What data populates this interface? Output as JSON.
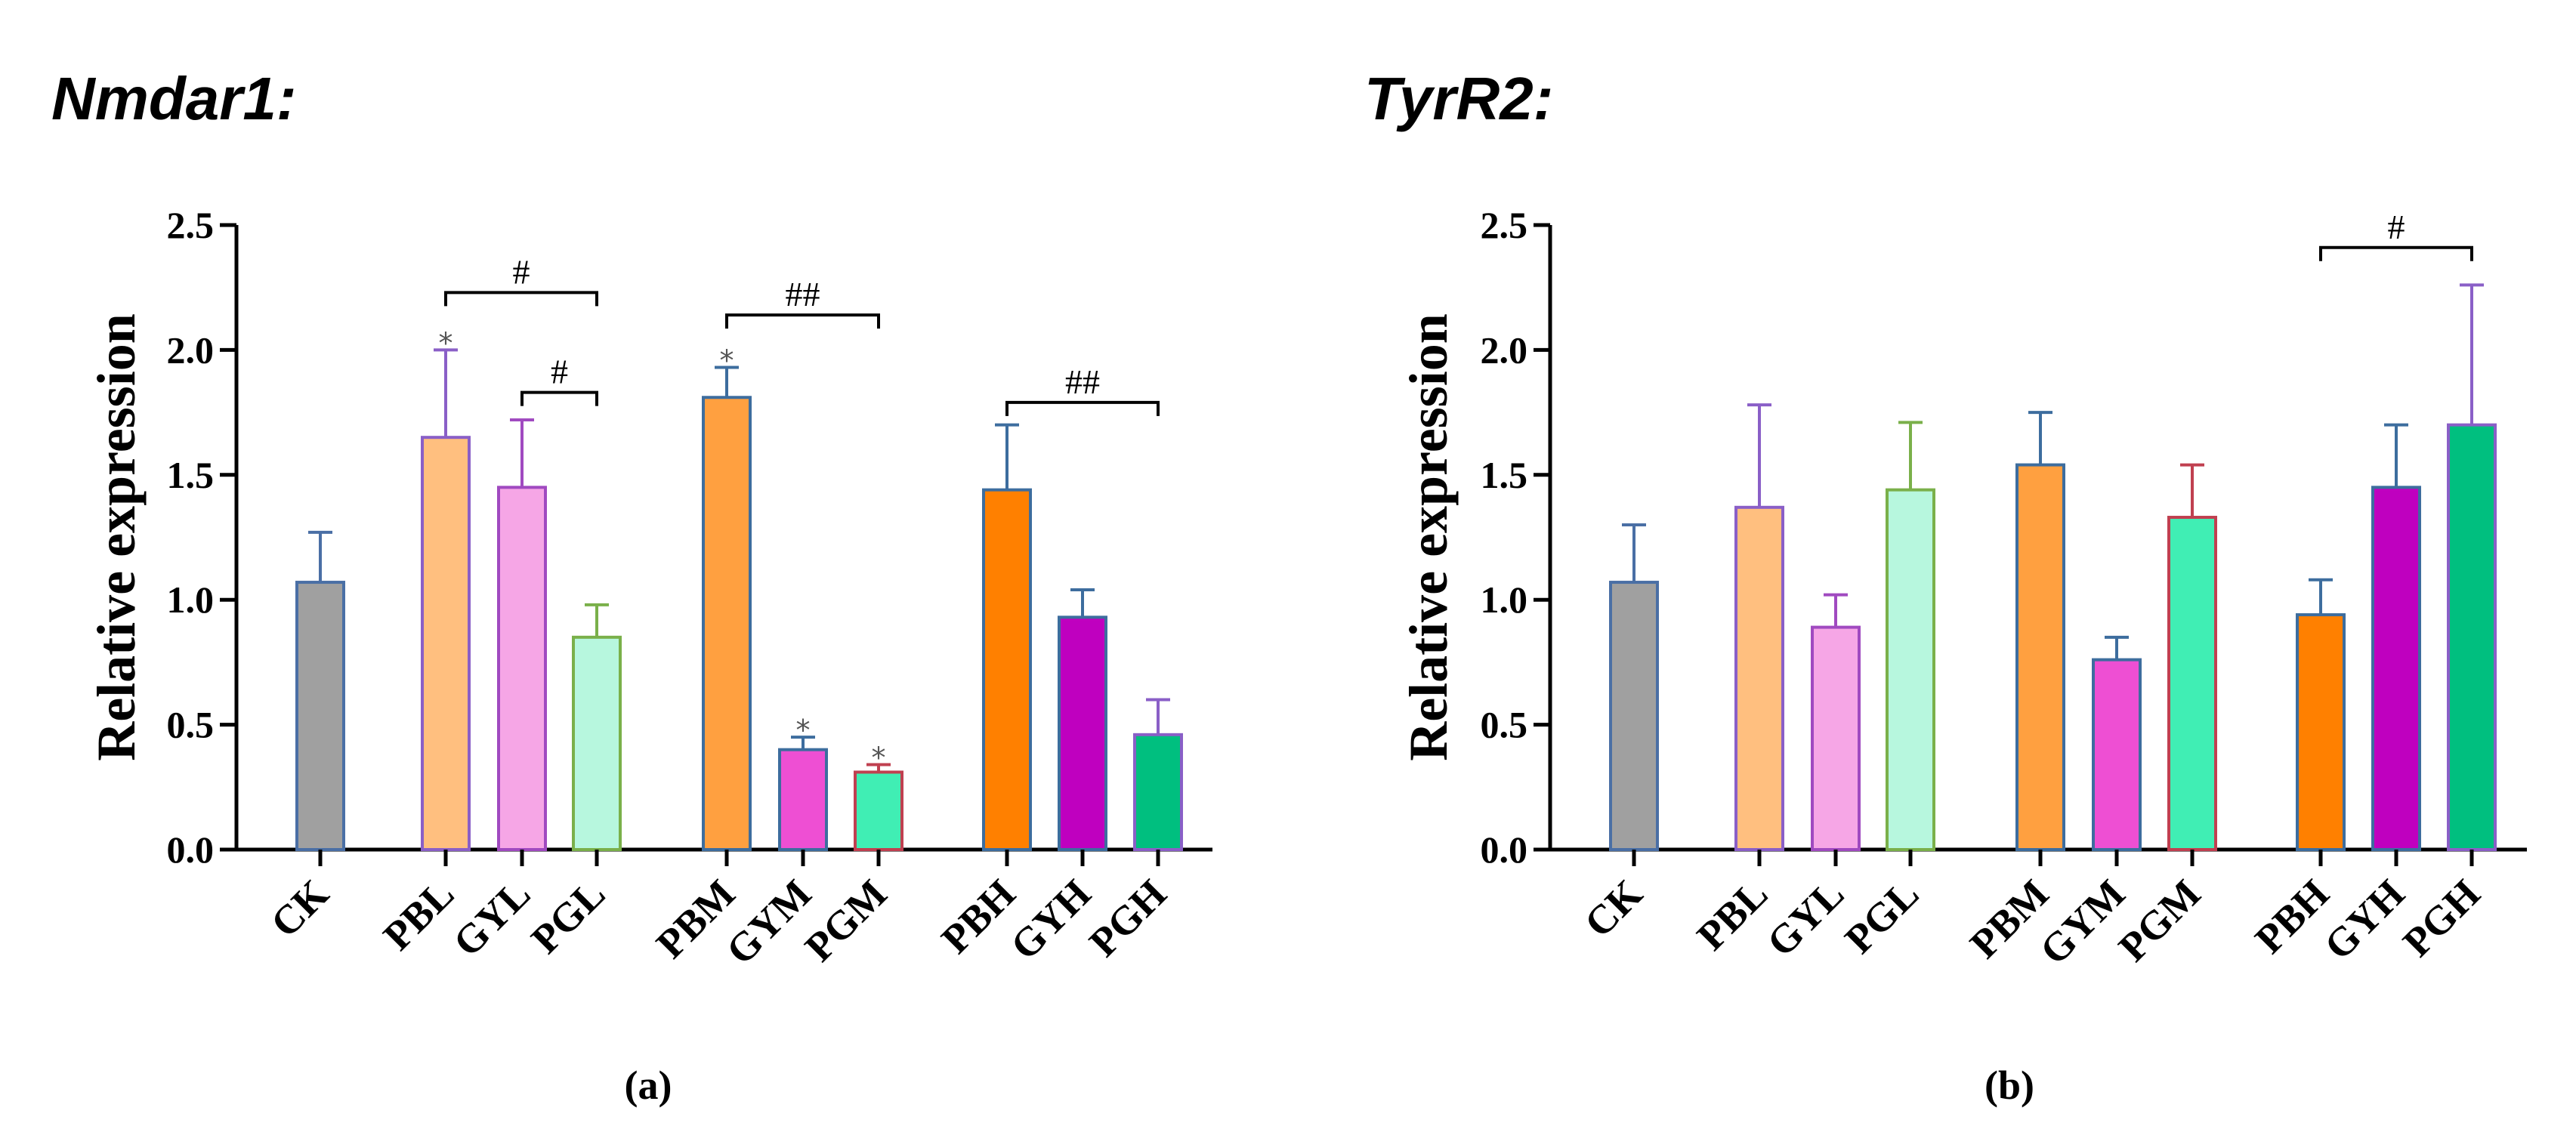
{
  "chart_data": [
    {
      "type": "bar",
      "title": "Nmdar1:",
      "panel_label": "(a)",
      "ylabel": "Relative expression",
      "ylim": [
        0,
        2.5
      ],
      "yticks": [
        "0.0",
        "0.5",
        "1.0",
        "1.5",
        "2.0",
        "2.5"
      ],
      "grid": false,
      "categories": [
        "CK",
        "PBL",
        "GYL",
        "PGL",
        "PBM",
        "GYM",
        "PGM",
        "PBH",
        "GYH",
        "PGH"
      ],
      "groups": [
        [
          "CK"
        ],
        [
          "PBL",
          "GYL",
          "PGL"
        ],
        [
          "PBM",
          "GYM",
          "PGM"
        ],
        [
          "PBH",
          "GYH",
          "PGH"
        ]
      ],
      "values": [
        1.07,
        1.65,
        1.45,
        0.85,
        1.81,
        0.4,
        0.31,
        1.44,
        0.93,
        0.46
      ],
      "errors": [
        0.2,
        0.35,
        0.27,
        0.13,
        0.12,
        0.05,
        0.03,
        0.26,
        0.11,
        0.14
      ],
      "asterisks": [
        "",
        "*",
        "",
        "",
        "*",
        "*",
        "*",
        "",
        "",
        ""
      ],
      "brackets": [
        {
          "from": "PBL",
          "to": "PGL",
          "label": "#",
          "y": 2.23
        },
        {
          "from": "GYL",
          "to": "PGL",
          "label": "#",
          "y": 1.83
        },
        {
          "from": "PBM",
          "to": "PGM",
          "label": "##",
          "y": 2.14
        },
        {
          "from": "PBH",
          "to": "PGH",
          "label": "##",
          "y": 1.79
        }
      ]
    },
    {
      "type": "bar",
      "title": "TyrR2:",
      "panel_label": "(b)",
      "ylabel": "Relative expression",
      "ylim": [
        0,
        2.5
      ],
      "yticks": [
        "0.0",
        "0.5",
        "1.0",
        "1.5",
        "2.0",
        "2.5"
      ],
      "grid": false,
      "categories": [
        "CK",
        "PBL",
        "GYL",
        "PGL",
        "PBM",
        "GYM",
        "PGM",
        "PBH",
        "GYH",
        "PGH"
      ],
      "groups": [
        [
          "CK"
        ],
        [
          "PBL",
          "GYL",
          "PGL"
        ],
        [
          "PBM",
          "GYM",
          "PGM"
        ],
        [
          "PBH",
          "GYH",
          "PGH"
        ]
      ],
      "values": [
        1.07,
        1.37,
        0.89,
        1.44,
        1.54,
        0.76,
        1.33,
        0.94,
        1.45,
        1.7
      ],
      "errors": [
        0.23,
        0.41,
        0.13,
        0.27,
        0.21,
        0.09,
        0.21,
        0.14,
        0.25,
        0.56
      ],
      "asterisks": [
        "",
        "",
        "",
        "",
        "",
        "",
        "",
        "",
        "",
        ""
      ],
      "brackets": [
        {
          "from": "PBH",
          "to": "PGH",
          "label": "#",
          "y": 2.41
        }
      ]
    }
  ],
  "colors": {
    "CK": {
      "fill": "#a0a0a0",
      "stroke": "#4a6fa5"
    },
    "PBL": {
      "fill": "#ffbf7f",
      "stroke": "#8a5fc7"
    },
    "GYL": {
      "fill": "#f6a6e6",
      "stroke": "#a04ac0"
    },
    "PGL": {
      "fill": "#b7f7de",
      "stroke": "#7ab04a"
    },
    "PBM": {
      "fill": "#ffa040",
      "stroke": "#3d6d9e"
    },
    "GYM": {
      "fill": "#ee4fd3",
      "stroke": "#3d6d9e"
    },
    "PGM": {
      "fill": "#40eeb4",
      "stroke": "#c04050"
    },
    "PBH": {
      "fill": "#ff8000",
      "stroke": "#3d6d9e"
    },
    "GYH": {
      "fill": "#bf00bf",
      "stroke": "#3d6d9e"
    },
    "PGH": {
      "fill": "#00bf7f",
      "stroke": "#8a5fc7"
    },
    "axis": "#000000",
    "bracket": "#000000",
    "star": "#555555"
  }
}
